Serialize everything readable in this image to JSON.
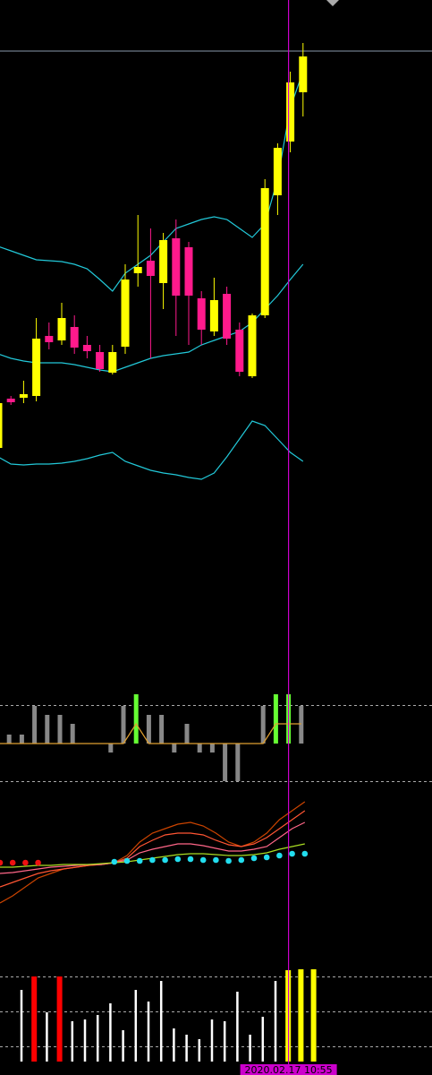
{
  "chart_data": [
    {
      "type": "candlestick",
      "ylim": [
        0,
        600
      ],
      "up_color": "#ffff00",
      "down_color": "#ff1a8c",
      "level_line": 543,
      "level_color": "#8899aa",
      "open": [
        100,
        155,
        156,
        158,
        225,
        220,
        235,
        215,
        207,
        184,
        213,
        295,
        309,
        284,
        334,
        324,
        267,
        230,
        272,
        232,
        180,
        248,
        382,
        442,
        497
      ],
      "close": [
        150,
        151,
        160,
        222,
        218,
        245,
        212,
        208,
        188,
        207,
        288,
        302,
        292,
        332,
        270,
        270,
        232,
        265,
        222,
        185,
        248,
        390,
        435,
        508,
        537
      ],
      "high": [
        160,
        158,
        175,
        245,
        240,
        262,
        248,
        225,
        215,
        215,
        305,
        360,
        345,
        340,
        355,
        330,
        275,
        290,
        280,
        240,
        250,
        400,
        440,
        520,
        552
      ],
      "low": [
        95,
        148,
        150,
        152,
        210,
        215,
        205,
        200,
        185,
        182,
        205,
        280,
        200,
        255,
        225,
        215,
        215,
        225,
        215,
        180,
        178,
        245,
        360,
        430,
        470
      ],
      "lines": [
        {
          "color": "#22c8d8",
          "values": [
            325,
            320,
            315,
            310,
            309,
            308,
            305,
            300,
            288,
            275,
            295,
            305,
            315,
            330,
            345,
            350,
            355,
            358,
            355,
            345,
            335,
            350,
            400,
            480,
            520
          ]
        },
        {
          "color": "#22c8d8",
          "values": [
            205,
            200,
            197,
            195,
            195,
            195,
            193,
            190,
            187,
            185,
            190,
            195,
            200,
            203,
            205,
            207,
            215,
            220,
            225,
            230,
            240,
            255,
            270,
            288,
            305
          ]
        },
        {
          "color": "#22c8d8",
          "values": [
            90,
            82,
            81,
            82,
            82,
            83,
            85,
            88,
            92,
            95,
            85,
            80,
            75,
            72,
            70,
            67,
            65,
            72,
            90,
            110,
            130,
            125,
            110,
            95,
            85
          ]
        }
      ]
    },
    {
      "type": "histogram",
      "ylim": [
        -50,
        50
      ],
      "values": [
        0,
        10,
        10,
        42,
        32,
        32,
        22,
        0,
        0,
        -10,
        42,
        55,
        32,
        32,
        -10,
        22,
        -10,
        -10,
        -42,
        -42,
        0,
        42,
        55,
        55,
        42
      ],
      "colors": [
        "#888888",
        "#888888",
        "#888888",
        "#888888",
        "#888888",
        "#888888",
        "#888888",
        "#888888",
        "#888888",
        "#888888",
        "#888888",
        "#66ff33",
        "#888888",
        "#888888",
        "#888888",
        "#888888",
        "#888888",
        "#888888",
        "#888888",
        "#888888",
        "#888888",
        "#888888",
        "#66ff33",
        "#66ff33",
        "#888888"
      ],
      "line": {
        "color": "#e0a030",
        "values": [
          0,
          0,
          0,
          0,
          0,
          0,
          0,
          0,
          0,
          0,
          0,
          22,
          0,
          0,
          0,
          0,
          0,
          0,
          0,
          0,
          0,
          0,
          22,
          22,
          22
        ]
      }
    },
    {
      "type": "line",
      "ylim": [
        0,
        130
      ],
      "lines": [
        {
          "color": "#cc4400",
          "values": [
            12,
            20,
            30,
            40,
            45,
            50,
            52,
            54,
            55,
            57,
            65,
            80,
            90,
            95,
            100,
            102,
            98,
            90,
            80,
            75,
            80,
            90,
            105,
            115,
            125
          ]
        },
        {
          "color": "#ff5533",
          "values": [
            30,
            35,
            40,
            45,
            48,
            50,
            52,
            54,
            55,
            57,
            62,
            75,
            82,
            88,
            90,
            90,
            88,
            82,
            77,
            75,
            78,
            85,
            95,
            105,
            115
          ]
        },
        {
          "color": "#ff6688",
          "values": [
            45,
            46,
            48,
            50,
            52,
            53,
            54,
            55,
            55,
            57,
            60,
            68,
            72,
            75,
            78,
            78,
            76,
            73,
            70,
            70,
            72,
            75,
            85,
            95,
            102
          ]
        },
        {
          "color": "#aadd22",
          "values": [
            52,
            52,
            53,
            54,
            54,
            55,
            55,
            55,
            56,
            57,
            58,
            60,
            62,
            64,
            66,
            67,
            67,
            66,
            65,
            65,
            66,
            68,
            72,
            75,
            78
          ]
        }
      ],
      "dots": [
        {
          "color": "#ee1111",
          "values": [
            57,
            57,
            57,
            57,
            null,
            null,
            null,
            null,
            null,
            null,
            null,
            null,
            null,
            null,
            null,
            null,
            null,
            null,
            null,
            null,
            null,
            null,
            null,
            null,
            null
          ]
        },
        {
          "color": "#22ddee",
          "values": [
            null,
            null,
            null,
            null,
            null,
            null,
            null,
            null,
            null,
            58,
            59,
            59,
            60,
            60,
            61,
            61,
            60,
            60,
            59,
            60,
            62,
            63,
            65,
            67,
            67
          ]
        }
      ]
    },
    {
      "type": "bar",
      "ylim": [
        0,
        105
      ],
      "values": [
        80,
        95,
        55,
        95,
        45,
        47,
        52,
        65,
        35,
        80,
        67,
        90,
        37,
        30,
        25,
        47,
        45,
        78,
        30,
        50,
        90,
        102,
        103,
        103
      ],
      "colors": [
        "#ffffff",
        "#ff0000",
        "#ffffff",
        "#ff0000",
        "#ffffff",
        "#ffffff",
        "#ffffff",
        "#ffffff",
        "#ffffff",
        "#ffffff",
        "#ffffff",
        "#ffffff",
        "#ffffff",
        "#ffffff",
        "#ffffff",
        "#ffffff",
        "#ffffff",
        "#ffffff",
        "#ffffff",
        "#ffffff",
        "#ffffff",
        "#ffff00",
        "#ffff00",
        "#ffff00"
      ]
    }
  ],
  "cursor": {
    "label": "2020.02.17 10:55",
    "index": 23,
    "color": "#cc00cc"
  }
}
